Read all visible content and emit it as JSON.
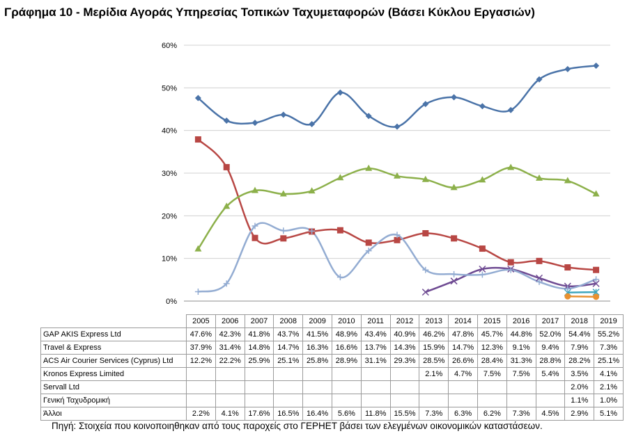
{
  "title": "Γράφημα 10 - Μερίδια Αγοράς Υπηρεσίας Τοπικών Ταχυμεταφορών (Βάσει Κύκλου Εργασιών)",
  "source": "Πηγή: Στοιχεία που κοινοποιηθηκαν από τους παροχείς στο ΓΕΡΗΕΤ βάσει των ελεγμένων οικονομικών καταστάσεων.",
  "chart_data": {
    "type": "line",
    "title": "Γράφημα 10 - Μερίδια Αγοράς Υπηρεσίας Τοπικών Ταχυμεταφορών (Βάσει Κύκλου Εργασιών)",
    "x": [
      "2005",
      "2006",
      "2007",
      "2008",
      "2009",
      "2010",
      "2011",
      "2012",
      "2013",
      "2014",
      "2015",
      "2016",
      "2017",
      "2018",
      "2019"
    ],
    "ylim": [
      0,
      60
    ],
    "yticks": [
      "0%",
      "10%",
      "20%",
      "30%",
      "40%",
      "50%",
      "60%"
    ],
    "grid": true,
    "legend": "data table below chart",
    "series": [
      {
        "name": "GAP AKIS Express Ltd",
        "color": "#4a73a8",
        "marker": "diamond",
        "values": [
          47.6,
          42.3,
          41.8,
          43.7,
          41.5,
          48.9,
          43.4,
          40.9,
          46.2,
          47.8,
          45.7,
          44.8,
          52.0,
          54.4,
          55.2
        ],
        "labels": [
          "47.6%",
          "42.3%",
          "41.8%",
          "43.7%",
          "41.5%",
          "48.9%",
          "43.4%",
          "40.9%",
          "46.2%",
          "47.8%",
          "45.7%",
          "44.8%",
          "52.0%",
          "54.4%",
          "55.2%"
        ]
      },
      {
        "name": "Travel & Express",
        "color": "#b84744",
        "marker": "square",
        "values": [
          37.9,
          31.4,
          14.8,
          14.7,
          16.3,
          16.6,
          13.7,
          14.3,
          15.9,
          14.7,
          12.3,
          9.1,
          9.4,
          7.9,
          7.3
        ],
        "labels": [
          "37.9%",
          "31.4%",
          "14.8%",
          "14.7%",
          "16.3%",
          "16.6%",
          "13.7%",
          "14.3%",
          "15.9%",
          "14.7%",
          "12.3%",
          "9.1%",
          "9.4%",
          "7.9%",
          "7.3%"
        ]
      },
      {
        "name": "ACS Air Courier Services (Cyprus) Ltd",
        "color": "#8cb04a",
        "marker": "triangle",
        "values": [
          12.2,
          22.2,
          25.9,
          25.1,
          25.8,
          28.9,
          31.1,
          29.3,
          28.5,
          26.6,
          28.4,
          31.3,
          28.8,
          28.2,
          25.1
        ],
        "labels": [
          "12.2%",
          "22.2%",
          "25.9%",
          "25.1%",
          "25.8%",
          "28.9%",
          "31.1%",
          "29.3%",
          "28.5%",
          "26.6%",
          "28.4%",
          "31.3%",
          "28.8%",
          "28.2%",
          "25.1%"
        ]
      },
      {
        "name": "Kronos Express Limited",
        "color": "#6e4a92",
        "marker": "x",
        "values": [
          null,
          null,
          null,
          null,
          null,
          null,
          null,
          null,
          2.1,
          4.7,
          7.5,
          7.5,
          5.4,
          3.5,
          4.1
        ],
        "labels": [
          "",
          "",
          "",
          "",
          "",
          "",
          "",
          "",
          "2.1%",
          "4.7%",
          "7.5%",
          "7.5%",
          "5.4%",
          "3.5%",
          "4.1%"
        ]
      },
      {
        "name": "Servall Ltd",
        "color": "#3fa6bd",
        "marker": "star",
        "values": [
          null,
          null,
          null,
          null,
          null,
          null,
          null,
          null,
          null,
          null,
          null,
          null,
          null,
          2.0,
          2.1
        ],
        "labels": [
          "",
          "",
          "",
          "",
          "",
          "",
          "",
          "",
          "",
          "",
          "",
          "",
          "",
          "2.0%",
          "2.1%"
        ]
      },
      {
        "name": "Γενική Ταχυδρομική",
        "color": "#e8902f",
        "marker": "circle",
        "values": [
          null,
          null,
          null,
          null,
          null,
          null,
          null,
          null,
          null,
          null,
          null,
          null,
          null,
          1.1,
          1.0
        ],
        "labels": [
          "",
          "",
          "",
          "",
          "",
          "",
          "",
          "",
          "",
          "",
          "",
          "",
          "",
          "1.1%",
          "1.0%"
        ]
      },
      {
        "name": "Άλλοι",
        "color": "#93acd2",
        "marker": "plus",
        "values": [
          2.2,
          4.1,
          17.6,
          16.5,
          16.4,
          5.6,
          11.8,
          15.5,
          7.3,
          6.3,
          6.2,
          7.3,
          4.5,
          2.9,
          5.1
        ],
        "labels": [
          "2.2%",
          "4.1%",
          "17.6%",
          "16.5%",
          "16.4%",
          "5.6%",
          "11.8%",
          "15.5%",
          "7.3%",
          "6.3%",
          "6.2%",
          "7.3%",
          "4.5%",
          "2.9%",
          "5.1%"
        ]
      }
    ]
  }
}
